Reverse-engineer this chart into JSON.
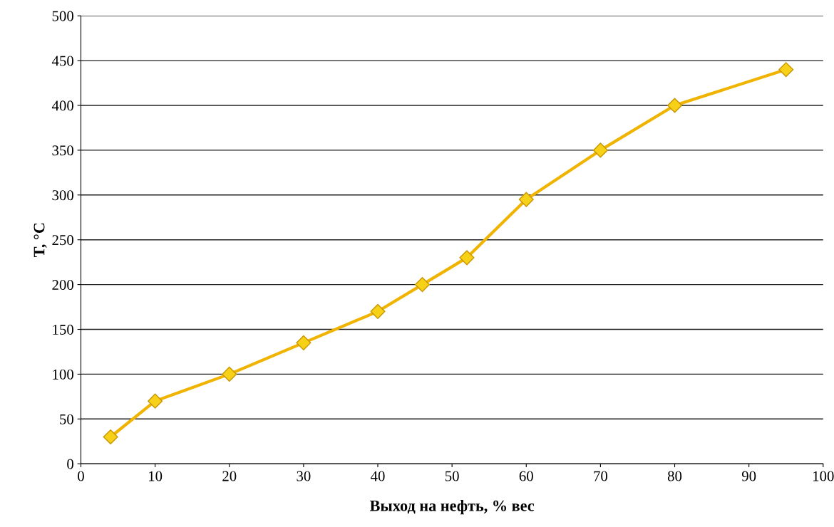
{
  "chart_data": {
    "type": "line",
    "xlabel": "Выход на нефть, % вес",
    "ylabel": "T, °C",
    "x": [
      4,
      10,
      20,
      30,
      40,
      46,
      52,
      60,
      70,
      80,
      95
    ],
    "series": [
      {
        "color": "#f0b400",
        "values": [
          30,
          70,
          100,
          135,
          170,
          200,
          230,
          295,
          350,
          400,
          440
        ]
      }
    ],
    "xlim": [
      0,
      100
    ],
    "ylim": [
      0,
      500
    ],
    "xticks": [
      0,
      10,
      20,
      30,
      40,
      50,
      60,
      70,
      80,
      90,
      100
    ],
    "yticks": [
      0,
      50,
      100,
      150,
      200,
      250,
      300,
      350,
      400,
      450,
      500
    ],
    "grid": "y",
    "marker": "diamond",
    "line_style": "solid"
  }
}
